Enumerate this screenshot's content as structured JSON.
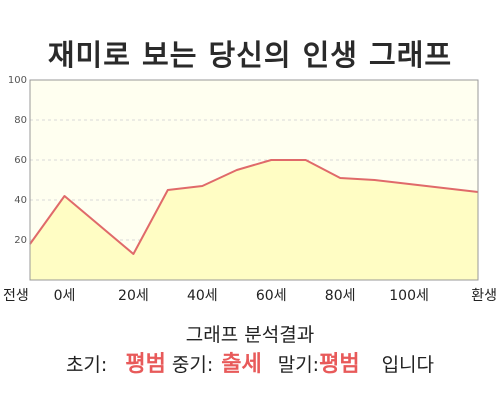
{
  "title": "재미로 보는 당신의 인생 그래프",
  "chart_data": {
    "type": "area",
    "title": "재미로 보는 당신의 인생 그래프",
    "x": [
      -10,
      0,
      20,
      30,
      40,
      50,
      60,
      70,
      80,
      90,
      100,
      110,
      120
    ],
    "values": [
      18,
      42,
      13,
      45,
      47,
      55,
      60,
      60,
      51,
      50,
      48,
      46,
      44
    ],
    "x_ticks": [
      {
        "x": -10,
        "label": "전생"
      },
      {
        "x": 0,
        "label": "0세"
      },
      {
        "x": 20,
        "label": "20세"
      },
      {
        "x": 40,
        "label": "40세"
      },
      {
        "x": 60,
        "label": "60세"
      },
      {
        "x": 80,
        "label": "80세"
      },
      {
        "x": 100,
        "label": "100세"
      },
      {
        "x": 120,
        "label": "환생"
      }
    ],
    "y_ticks": [
      "20",
      "40",
      "60",
      "80",
      "100"
    ],
    "ylim": [
      0,
      100
    ],
    "xlim": [
      -10,
      120
    ],
    "grid": true,
    "colors": {
      "line": "#e06a6a",
      "fill": "#fffdc4",
      "plot_bg": "#fffff0",
      "grid": "#d8d8d8"
    }
  },
  "summary": {
    "heading": "그래프 분석결과",
    "early_label": "초기:",
    "early_value": "평범",
    "mid_label": "중기:",
    "mid_value": "출세",
    "late_label": "말기:",
    "late_value": "평범",
    "ending": "입니다"
  }
}
